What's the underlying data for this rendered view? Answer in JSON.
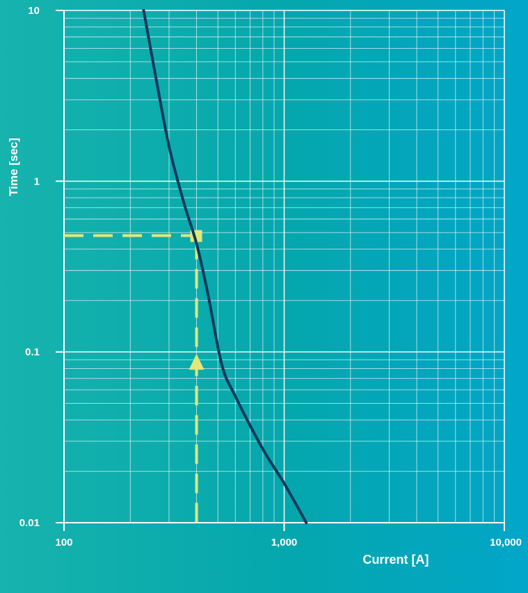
{
  "chart_data": {
    "type": "line",
    "x_scale": "log",
    "y_scale": "log",
    "xlim": [
      100,
      10000
    ],
    "ylim": [
      0.01,
      10
    ],
    "xlabel": "Current [A]",
    "ylabel": "Time [sec]",
    "x_ticks": [
      {
        "value": 100,
        "label": "100"
      },
      {
        "value": 1000,
        "label": "1,000"
      },
      {
        "value": 10000,
        "label": "10,000"
      }
    ],
    "y_ticks": [
      {
        "value": 10,
        "label": "10"
      },
      {
        "value": 1,
        "label": "1"
      },
      {
        "value": 0.1,
        "label": "0.1"
      },
      {
        "value": 0.01,
        "label": "0.01"
      }
    ],
    "grid": true,
    "series": [
      {
        "color": "#0a3a5c",
        "x": [
          230,
          260,
          300,
          350,
          400,
          450,
          520,
          600,
          800,
          1000,
          1260
        ],
        "y": [
          10,
          4.2,
          1.6,
          0.75,
          0.43,
          0.22,
          0.085,
          0.055,
          0.027,
          0.017,
          0.01
        ]
      }
    ],
    "annotations": [
      {
        "type": "reading-guide",
        "color": "#e2e77a",
        "x": 400,
        "y": 0.48
      }
    ]
  }
}
